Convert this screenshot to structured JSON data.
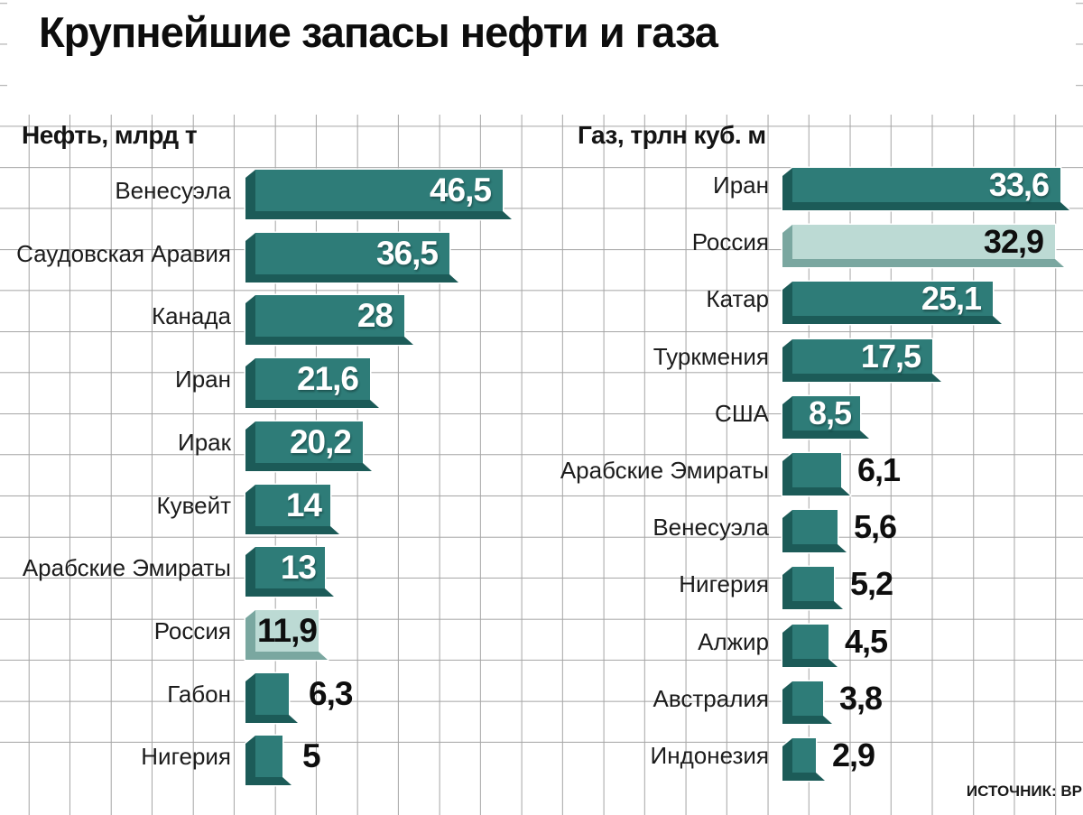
{
  "title": "Крупнейшие запасы нефти и газа",
  "source_label": "ИСТОЧНИК: ВР",
  "colors": {
    "bar_teal_face": "#2e7c78",
    "bar_teal_bevel": "#1c5b58",
    "bar_highlight_face": "#bcdad4",
    "bar_highlight_bevel": "#7aa7a0",
    "grid_line": "#a6a6a6",
    "text": "#161616",
    "value_inside": "#ffffff"
  },
  "chart_data": [
    {
      "id": "oil",
      "type": "bar",
      "orientation": "horizontal",
      "title": "Нефть, млрд т",
      "unit": "млрд т",
      "categories": [
        "Венесуэла",
        "Саудовская Аравия",
        "Канада",
        "Иран",
        "Ирак",
        "Кувейт",
        "Арабские Эмираты",
        "Россия",
        "Габон",
        "Нигерия"
      ],
      "values": [
        46.5,
        36.5,
        28,
        21.6,
        20.2,
        14,
        13,
        11.9,
        6.3,
        5
      ],
      "value_labels": [
        "46,5",
        "36,5",
        "28",
        "21,6",
        "20,2",
        "14",
        "13",
        "11,9",
        "6,3",
        "5"
      ],
      "highlight_category": "Россия",
      "highlight_index": 7,
      "xlim": [
        0,
        46.5
      ],
      "grid": true,
      "legend": false
    },
    {
      "id": "gas",
      "type": "bar",
      "orientation": "horizontal",
      "title": "Газ, трлн куб. м",
      "unit": "трлн куб. м",
      "categories": [
        "Иран",
        "Россия",
        "Катар",
        "Туркмения",
        "США",
        "Арабские Эмираты",
        "Венесуэла",
        "Нигерия",
        "Алжир",
        "Австралия",
        "Индонезия"
      ],
      "values": [
        33.6,
        32.9,
        25.1,
        17.5,
        8.5,
        6.1,
        5.6,
        5.2,
        4.5,
        3.8,
        2.9
      ],
      "value_labels": [
        "33,6",
        "32,9",
        "25,1",
        "17,5",
        "8,5",
        "6,1",
        "5,6",
        "5,2",
        "4,5",
        "3,8",
        "2,9"
      ],
      "highlight_category": "Россия",
      "highlight_index": 1,
      "xlim": [
        0,
        33.6
      ],
      "grid": true,
      "legend": false
    }
  ]
}
